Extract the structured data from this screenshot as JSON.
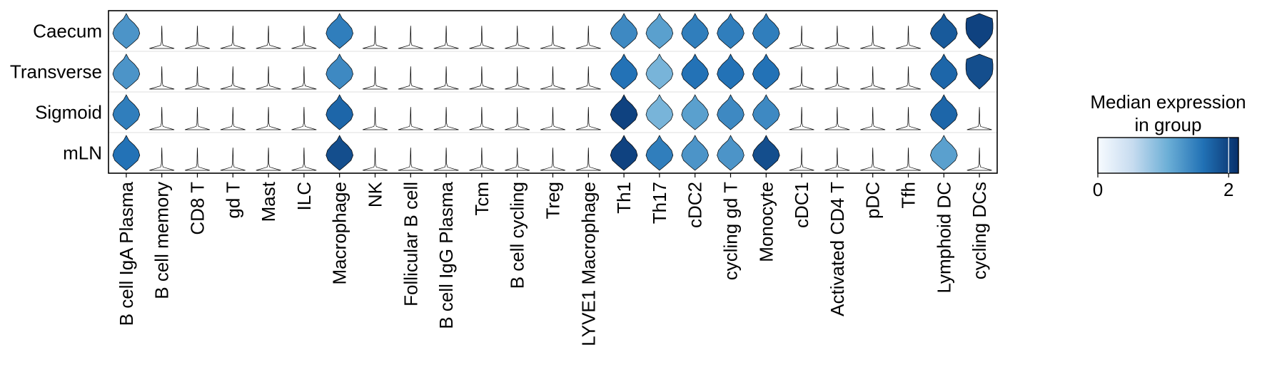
{
  "chart_data": {
    "type": "stacked-violin",
    "title": "",
    "rows": [
      "Caecum",
      "Transverse",
      "Sigmoid",
      "mLN"
    ],
    "categories": [
      "B cell IgA Plasma",
      "B cell memory",
      "CD8 T",
      "gd T",
      "Mast",
      "ILC",
      "Macrophage",
      "NK",
      "Follicular B cell",
      "B cell IgG Plasma",
      "Tcm",
      "B cell cycling",
      "Treg",
      "LYVE1 Macrophage",
      "Th1",
      "Th17",
      "cDC2",
      "cycling gd T",
      "Monocyte",
      "cDC1",
      "Activated CD4 T",
      "pDC",
      "Tfh",
      "Lymphoid DC",
      "cycling DCs"
    ],
    "median_expression": [
      [
        1.3,
        0,
        0,
        0,
        0,
        0,
        1.5,
        0,
        0,
        0,
        0,
        0,
        0,
        0,
        1.4,
        1.2,
        1.5,
        1.5,
        1.5,
        0,
        0,
        0,
        0,
        1.8,
        2.0
      ],
      [
        1.3,
        0,
        0,
        0,
        0,
        0,
        1.4,
        0,
        0,
        0,
        0,
        0,
        0,
        0,
        1.6,
        1.0,
        1.6,
        1.6,
        1.6,
        0,
        0,
        0,
        0,
        1.7,
        1.9
      ],
      [
        1.5,
        0,
        0,
        0,
        0,
        0,
        1.7,
        0,
        0,
        0,
        0,
        0,
        0,
        0.1,
        2.0,
        1.0,
        1.2,
        1.4,
        1.4,
        0,
        0,
        0,
        0,
        1.7,
        0
      ],
      [
        1.6,
        0,
        0,
        0,
        0,
        0,
        1.9,
        0,
        0,
        0,
        0,
        0,
        0,
        0,
        2.0,
        1.5,
        1.3,
        1.3,
        1.9,
        0,
        0,
        0,
        0,
        1.2,
        0
      ]
    ],
    "colorbar": {
      "title": "Median expression\nin group",
      "min": 0,
      "max": 2.15,
      "ticks": [
        0,
        2
      ],
      "colormap": "Blues"
    }
  }
}
